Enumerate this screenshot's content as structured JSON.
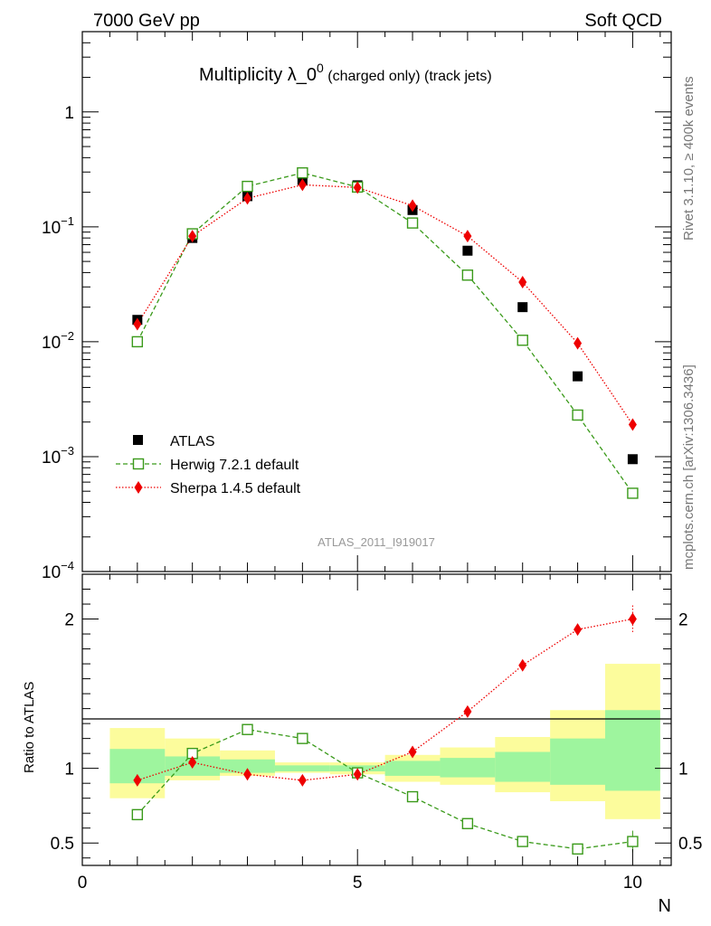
{
  "header": {
    "left": "7000 GeV pp",
    "right": "Soft QCD",
    "title_main": "Multiplicity λ_0",
    "title_sup": "0",
    "title_sub": " (charged only) (track jets)"
  },
  "side": {
    "rivet": "Rivet 3.1.10, ≥ 400k events",
    "source": "mcplots.cern.ch [arXiv:1306.3436]"
  },
  "watermark": "ATLAS_2011_I919017",
  "colors": {
    "atlas": "#000000",
    "herwig": "#3a9a1a",
    "sherpa": "#ee0000",
    "band_inner": "#9ef59e",
    "band_outer": "#fcfc9c"
  },
  "chart_data": [
    {
      "type": "scatter",
      "panel": "main",
      "title": "Multiplicity λ_0^0 (charged only) (track jets)",
      "xlabel": "N",
      "ylabel": "",
      "xlim": [
        0,
        10.7
      ],
      "ylim": [
        0.0001,
        5
      ],
      "yscale": "log",
      "yticks": [
        {
          "base": "10",
          "exp": "−4",
          "value": 0.0001
        },
        {
          "base": "10",
          "exp": "−3",
          "value": 0.001
        },
        {
          "base": "10",
          "exp": "−2",
          "value": 0.01
        },
        {
          "base": "10",
          "exp": "−1",
          "value": 0.1
        },
        {
          "base": "1",
          "exp": "",
          "value": 1
        }
      ],
      "legend_position": "bottom-left",
      "series": [
        {
          "name": "ATLAS",
          "style": "marker-square",
          "x": [
            1,
            2,
            3,
            4,
            5,
            6,
            7,
            8,
            9,
            10
          ],
          "values": [
            0.0155,
            0.08,
            0.185,
            0.255,
            0.23,
            0.14,
            0.062,
            0.02,
            0.005,
            0.00095
          ]
        },
        {
          "name": "Herwig 7.2.1 default",
          "style": "dashed-open-square",
          "x": [
            1,
            2,
            3,
            4,
            5,
            6,
            7,
            8,
            9,
            10
          ],
          "values": [
            0.01,
            0.087,
            0.225,
            0.295,
            0.222,
            0.108,
            0.038,
            0.0103,
            0.0023,
            0.00048
          ]
        },
        {
          "name": "Sherpa 1.4.5 default",
          "style": "dotted-diamond",
          "x": [
            1,
            2,
            3,
            4,
            5,
            6,
            7,
            8,
            9,
            10
          ],
          "values": [
            0.0142,
            0.083,
            0.177,
            0.232,
            0.22,
            0.153,
            0.083,
            0.033,
            0.0097,
            0.0019
          ]
        }
      ]
    },
    {
      "type": "line",
      "panel": "ratio",
      "ylabel": "Ratio to ATLAS",
      "xlabel": "N",
      "xlim": [
        0,
        10.7
      ],
      "ylim": [
        0.35,
        2.3
      ],
      "xticks": [
        0,
        5,
        10
      ],
      "yticks": [
        0.5,
        1,
        2
      ],
      "bands": [
        {
          "x0": 0.5,
          "x1": 1.5,
          "inner": [
            0.9,
            1.13
          ],
          "outer": [
            0.8,
            1.27
          ]
        },
        {
          "x0": 1.5,
          "x1": 2.5,
          "inner": [
            0.95,
            1.08
          ],
          "outer": [
            0.92,
            1.2
          ]
        },
        {
          "x0": 2.5,
          "x1": 3.5,
          "inner": [
            0.97,
            1.06
          ],
          "outer": [
            0.95,
            1.12
          ]
        },
        {
          "x0": 3.5,
          "x1": 4.5,
          "inner": [
            0.98,
            1.02
          ],
          "outer": [
            0.97,
            1.04
          ]
        },
        {
          "x0": 4.5,
          "x1": 5.5,
          "inner": [
            0.98,
            1.02
          ],
          "outer": [
            0.96,
            1.04
          ]
        },
        {
          "x0": 5.5,
          "x1": 6.5,
          "inner": [
            0.95,
            1.05
          ],
          "outer": [
            0.91,
            1.09
          ]
        },
        {
          "x0": 6.5,
          "x1": 7.5,
          "inner": [
            0.94,
            1.07
          ],
          "outer": [
            0.89,
            1.14
          ]
        },
        {
          "x0": 7.5,
          "x1": 8.5,
          "inner": [
            0.91,
            1.11
          ],
          "outer": [
            0.84,
            1.21
          ]
        },
        {
          "x0": 8.5,
          "x1": 9.5,
          "inner": [
            0.89,
            1.2
          ],
          "outer": [
            0.78,
            1.39
          ]
        },
        {
          "x0": 9.5,
          "x1": 10.5,
          "inner": [
            0.85,
            1.39
          ],
          "outer": [
            0.66,
            1.7
          ]
        }
      ],
      "series": [
        {
          "name": "Herwig 7.2.1 default",
          "x": [
            1,
            2,
            3,
            4,
            5,
            6,
            7,
            8,
            9,
            10
          ],
          "values": [
            0.69,
            1.1,
            1.26,
            1.2,
            0.97,
            0.81,
            0.63,
            0.51,
            0.46,
            0.51
          ]
        },
        {
          "name": "Sherpa 1.4.5 default",
          "x": [
            1,
            2,
            3,
            4,
            5,
            6,
            7,
            8,
            9,
            10
          ],
          "values": [
            0.92,
            1.04,
            0.96,
            0.92,
            0.96,
            1.11,
            1.38,
            1.69,
            1.93,
            2.0
          ]
        }
      ]
    }
  ]
}
